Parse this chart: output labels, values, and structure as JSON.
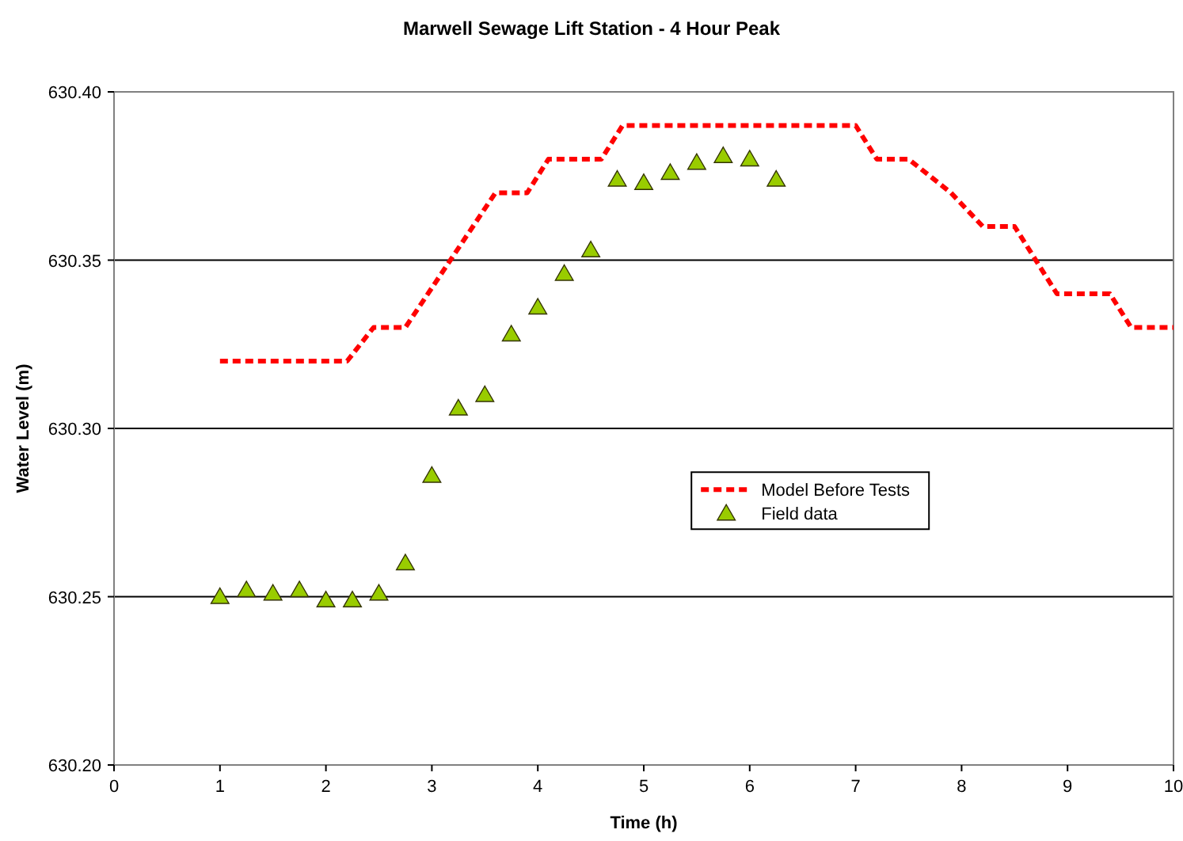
{
  "chart_data": {
    "type": "line",
    "title": "Marwell Sewage Lift Station - 4 Hour Peak",
    "xlabel": "Time (h)",
    "ylabel": "Water Level (m)",
    "xlim": [
      0,
      10
    ],
    "xticks": [
      0,
      1,
      2,
      3,
      4,
      5,
      6,
      7,
      8,
      9,
      10
    ],
    "ylim": [
      630.2,
      630.4
    ],
    "yticks": [
      {
        "value": 630.2,
        "label": "630.20"
      },
      {
        "value": 630.25,
        "label": "630.25"
      },
      {
        "value": 630.3,
        "label": "630.30"
      },
      {
        "value": 630.35,
        "label": "630.35"
      },
      {
        "value": 630.4,
        "label": "630.40"
      }
    ],
    "grid": "y",
    "legend": "right",
    "series": [
      {
        "name": "Model Before Tests",
        "line_style": "dashed",
        "marker": "none",
        "color": "#ff0000",
        "x": [
          1,
          2.2,
          2.45,
          2.75,
          3.6,
          3.9,
          4.1,
          4.6,
          4.8,
          7.0,
          7.2,
          7.5,
          7.9,
          8.2,
          8.5,
          8.9,
          9.4,
          9.6,
          10
        ],
        "values": [
          630.32,
          630.32,
          630.33,
          630.33,
          630.37,
          630.37,
          630.38,
          630.38,
          630.39,
          630.39,
          630.38,
          630.38,
          630.37,
          630.36,
          630.36,
          630.34,
          630.34,
          630.33,
          630.33
        ]
      },
      {
        "name": "Field data",
        "type": "scatter",
        "marker": "triangle",
        "color": "#99cc00",
        "x": [
          1,
          1.25,
          1.5,
          1.75,
          2,
          2.25,
          2.5,
          2.75,
          3,
          3.25,
          3.5,
          3.75,
          4,
          4.25,
          4.5,
          4.75,
          5,
          5.25,
          5.5,
          5.75,
          6,
          6.25
        ],
        "values": [
          630.25,
          630.252,
          630.251,
          630.252,
          630.249,
          630.249,
          630.251,
          630.26,
          630.286,
          630.306,
          630.31,
          630.328,
          630.336,
          630.346,
          630.353,
          630.374,
          630.373,
          630.376,
          630.379,
          630.381,
          630.38,
          630.374
        ]
      }
    ]
  }
}
